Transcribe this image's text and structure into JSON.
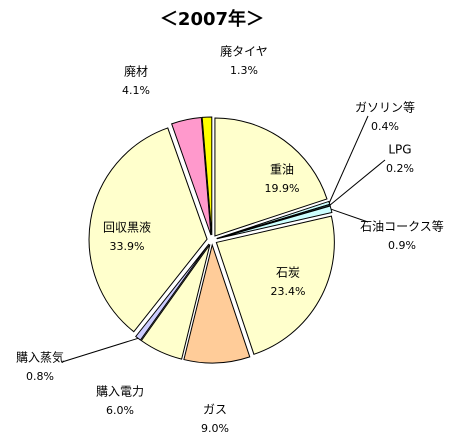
{
  "chart_data": {
    "type": "pie",
    "title": "＜2007年＞",
    "categories": [
      "重油",
      "ガソリン等",
      "LPG",
      "石油コークス等",
      "石炭",
      "ガス",
      "購入電力",
      "購入蒸気",
      "回収黒液",
      "廃材",
      "廃タイヤ"
    ],
    "values": [
      19.9,
      0.4,
      0.2,
      0.9,
      23.4,
      9.0,
      6.0,
      0.8,
      33.9,
      4.1,
      1.3
    ],
    "value_labels": [
      "19.9%",
      "0.4%",
      "0.2%",
      "0.9%",
      "23.4%",
      "9.0%",
      "6.0%",
      "0.8%",
      "33.9%",
      "4.1%",
      "1.3%"
    ],
    "colors": [
      "#ffffcc",
      "#ccffff",
      "#336666",
      "#ccffff",
      "#ffffcc",
      "#ffcc99",
      "#ffffcc",
      "#ccccff",
      "#ffffcc",
      "#ff99cc",
      "#ffff00"
    ]
  }
}
